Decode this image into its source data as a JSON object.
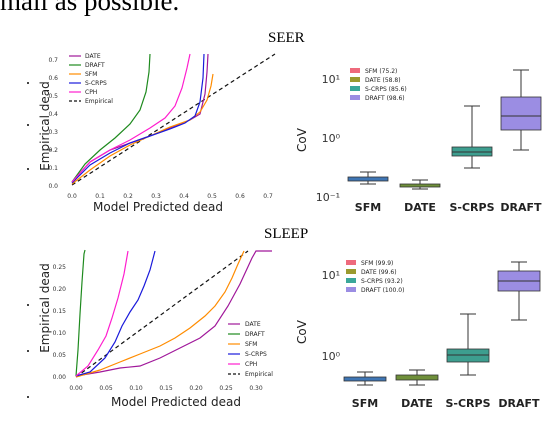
{
  "header_text": "mall as possible.",
  "sections": [
    {
      "title": "SEER",
      "calibration": {
        "xlabel": "Model Predicted dead",
        "ylabel": "Empirical dead",
        "xticks": [
          "0.0",
          "0.1",
          "0.2",
          "0.3",
          "0.4",
          "0.5",
          "0.6",
          "0.7"
        ],
        "yticks": [
          "0.0",
          "0.1",
          "0.2",
          "0.3",
          "0.4",
          "0.5",
          "0.6",
          "0.7"
        ],
        "legend": [
          "DATE",
          "DRAFT",
          "SFM",
          "S-CRPS",
          "CPH",
          "Empirical"
        ]
      },
      "cov": {
        "ylabel": "CoV",
        "yticks": [
          "10⁻¹",
          "10⁰",
          "10¹"
        ],
        "categories": [
          "SFM",
          "DATE",
          "S-CRPS",
          "DRAFT"
        ],
        "legend": [
          "SFM (75.2)",
          "DATE (58.8)",
          "S-CRPS (85.6)",
          "DRAFT (98.6)"
        ]
      }
    },
    {
      "title": "SLEEP",
      "calibration": {
        "xlabel": "Model Predicted dead",
        "ylabel": "Empirical dead",
        "xticks": [
          "0.00",
          "0.05",
          "0.10",
          "0.15",
          "0.20",
          "0.25",
          "0.30"
        ],
        "yticks": [
          "0.00",
          "0.05",
          "0.10",
          "0.15",
          "0.20",
          "0.25"
        ],
        "legend": [
          "DATE",
          "DRAFT",
          "SFM",
          "S-CRPS",
          "CPH",
          "Empirical"
        ]
      },
      "cov": {
        "ylabel": "CoV",
        "yticks": [
          "10⁰",
          "10¹"
        ],
        "categories": [
          "SFM",
          "DATE",
          "S-CRPS",
          "DRAFT"
        ],
        "legend": [
          "SFM (99.9)",
          "DATE (99.6)",
          "S-CRPS (93.2)",
          "DRAFT (100.0)"
        ]
      }
    }
  ],
  "colors": {
    "DATE": "#a0179a",
    "DRAFT": "#1e8a1e",
    "SFM": "#ff8c00",
    "S-CRPS": "#1a1adb",
    "CPH": "#ff1dce",
    "Empirical": "#111111",
    "box_SFM": "#3f76b4",
    "box_DATE": "#6f8f3a",
    "box_S-CRPS": "#3d9e8f",
    "box_DRAFT": "#9b8de3",
    "legend_SFM": "#ee6a7c",
    "legend_DATE": "#9a9a2f",
    "legend_S-CRPS": "#3aa79a",
    "legend_DRAFT": "#9b8de3"
  }
}
